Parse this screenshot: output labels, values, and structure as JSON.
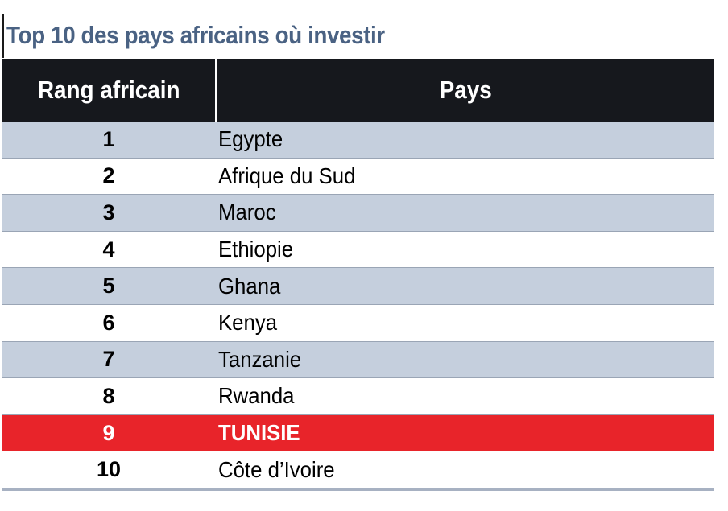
{
  "title": "Top 10 des pays africains où investir",
  "table": {
    "headers": {
      "rank": "Rang africain",
      "country": "Pays"
    },
    "rows": [
      {
        "rank": "1",
        "country": "Egypte"
      },
      {
        "rank": "2",
        "country": "Afrique du Sud"
      },
      {
        "rank": "3",
        "country": "Maroc"
      },
      {
        "rank": "4",
        "country": "Ethiopie"
      },
      {
        "rank": "5",
        "country": "Ghana"
      },
      {
        "rank": "6",
        "country": "Kenya"
      },
      {
        "rank": "7",
        "country": "Tanzanie"
      },
      {
        "rank": "8",
        "country": "Rwanda"
      },
      {
        "rank": "9",
        "country": "TUNISIE"
      },
      {
        "rank": "10",
        "country": "Côte d’Ivoire"
      }
    ]
  },
  "colors": {
    "title": "#4a6283",
    "header_bg": "#16181d",
    "row_shaded": "#c5cfdd",
    "highlight": "#e8242a"
  }
}
